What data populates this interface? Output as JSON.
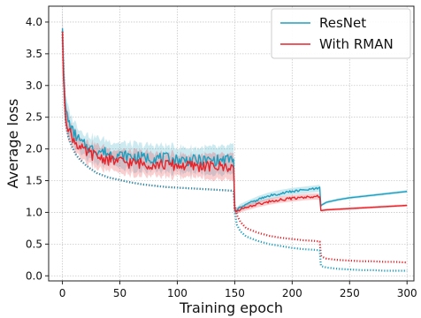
{
  "chart_data": {
    "type": "line",
    "xlabel": "Training epoch",
    "ylabel": "Average loss",
    "xlim": [
      -12,
      306
    ],
    "ylim": [
      -0.08,
      4.25
    ],
    "xticks": [
      0,
      50,
      100,
      150,
      200,
      250,
      300
    ],
    "yticks": [
      0.0,
      0.5,
      1.0,
      1.5,
      2.0,
      2.5,
      3.0,
      3.5,
      4.0
    ],
    "grid": true,
    "legend_position": "top-right",
    "series": [
      {
        "name": "ResNet",
        "color": "#1f9fbf",
        "style": "solid",
        "x": [
          0,
          1,
          2,
          3,
          5,
          8,
          12,
          16,
          20,
          25,
          30,
          40,
          50,
          60,
          70,
          80,
          90,
          100,
          110,
          120,
          130,
          140,
          149,
          150,
          152,
          155,
          160,
          170,
          180,
          190,
          200,
          210,
          220,
          224,
          225,
          226,
          230,
          240,
          250,
          260,
          270,
          280,
          290,
          300
        ],
        "y": [
          3.9,
          3.2,
          2.85,
          2.6,
          2.45,
          2.3,
          2.2,
          2.1,
          2.05,
          2.0,
          1.98,
          1.93,
          1.9,
          1.88,
          1.86,
          1.86,
          1.85,
          1.83,
          1.82,
          1.82,
          1.82,
          1.82,
          1.85,
          1.05,
          1.03,
          1.08,
          1.12,
          1.2,
          1.26,
          1.3,
          1.33,
          1.35,
          1.37,
          1.38,
          1.1,
          1.12,
          1.16,
          1.2,
          1.23,
          1.25,
          1.27,
          1.29,
          1.31,
          1.33
        ]
      },
      {
        "name": "With RMAN",
        "color": "#e8232a",
        "style": "solid",
        "x": [
          0,
          1,
          2,
          3,
          5,
          8,
          12,
          16,
          20,
          25,
          30,
          40,
          50,
          60,
          70,
          80,
          90,
          100,
          110,
          120,
          130,
          140,
          149,
          150,
          152,
          155,
          160,
          170,
          180,
          190,
          200,
          210,
          220,
          224,
          225,
          226,
          230,
          240,
          250,
          260,
          270,
          280,
          290,
          300
        ],
        "y": [
          3.85,
          3.1,
          2.75,
          2.5,
          2.35,
          2.2,
          2.1,
          2.0,
          1.95,
          1.92,
          1.88,
          1.83,
          1.8,
          1.78,
          1.77,
          1.76,
          1.75,
          1.74,
          1.73,
          1.73,
          1.72,
          1.72,
          1.72,
          1.03,
          1.02,
          1.05,
          1.08,
          1.13,
          1.17,
          1.2,
          1.22,
          1.24,
          1.25,
          1.25,
          1.03,
          1.03,
          1.04,
          1.05,
          1.06,
          1.07,
          1.08,
          1.09,
          1.1,
          1.11
        ]
      },
      {
        "name": "",
        "color": "#e8232a",
        "style": "dotted",
        "x": [
          0,
          1,
          2,
          3,
          5,
          8,
          12,
          16,
          20,
          25,
          30,
          40,
          50,
          60,
          70,
          80,
          90,
          100,
          110,
          120,
          130,
          140,
          149,
          150,
          152,
          155,
          160,
          170,
          180,
          190,
          200,
          210,
          220,
          224,
          225,
          226,
          230,
          240,
          250,
          260,
          270,
          280,
          290,
          300
        ],
        "y": [
          3.85,
          3.2,
          2.75,
          2.4,
          2.2,
          2.05,
          1.9,
          1.82,
          1.75,
          1.68,
          1.62,
          1.55,
          1.51,
          1.47,
          1.44,
          1.42,
          1.4,
          1.39,
          1.38,
          1.37,
          1.36,
          1.35,
          1.34,
          1.1,
          0.95,
          0.85,
          0.75,
          0.68,
          0.63,
          0.6,
          0.58,
          0.56,
          0.55,
          0.54,
          0.32,
          0.3,
          0.27,
          0.25,
          0.24,
          0.23,
          0.23,
          0.22,
          0.22,
          0.21
        ]
      },
      {
        "name": "",
        "color": "#1f9fbf",
        "style": "dotted",
        "x": [
          0,
          1,
          2,
          3,
          5,
          8,
          12,
          16,
          20,
          25,
          30,
          40,
          50,
          60,
          70,
          80,
          90,
          100,
          110,
          120,
          130,
          140,
          149,
          150,
          152,
          155,
          160,
          170,
          180,
          190,
          200,
          210,
          220,
          224,
          225,
          226,
          230,
          240,
          250,
          260,
          270,
          280,
          290,
          300
        ],
        "y": [
          3.85,
          3.2,
          2.75,
          2.4,
          2.2,
          2.05,
          1.9,
          1.82,
          1.75,
          1.68,
          1.62,
          1.55,
          1.51,
          1.47,
          1.44,
          1.42,
          1.4,
          1.39,
          1.38,
          1.37,
          1.36,
          1.35,
          1.34,
          1.0,
          0.8,
          0.7,
          0.62,
          0.55,
          0.5,
          0.47,
          0.44,
          0.42,
          0.41,
          0.4,
          0.16,
          0.15,
          0.13,
          0.11,
          0.1,
          0.09,
          0.09,
          0.08,
          0.08,
          0.08
        ]
      }
    ]
  }
}
